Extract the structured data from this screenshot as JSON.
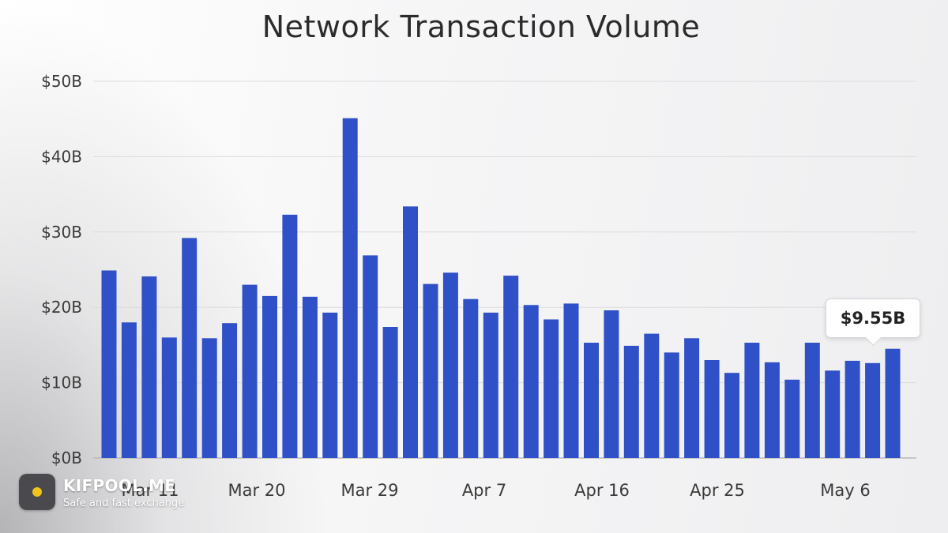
{
  "chart_data": {
    "type": "bar",
    "title": "Network Transaction Volume",
    "xlabel": "",
    "ylabel": "",
    "ylim": [
      0,
      50
    ],
    "y_unit": "$B",
    "y_ticks": [
      "$0B",
      "$10B",
      "$20B",
      "$30B",
      "$40B",
      "$50B"
    ],
    "x_tick_labels": [
      "Mar 11",
      "Mar 20",
      "Mar 29",
      "Apr 7",
      "Apr 16",
      "Apr 25",
      "May 6"
    ],
    "grid": true,
    "bar_color": "#3050c8",
    "values": [
      24.9,
      18.0,
      24.1,
      16.0,
      29.2,
      15.9,
      17.9,
      23.0,
      21.5,
      32.3,
      21.4,
      19.3,
      45.1,
      26.9,
      17.4,
      33.4,
      23.1,
      24.6,
      21.1,
      19.3,
      24.2,
      20.3,
      18.4,
      20.5,
      15.3,
      19.6,
      14.9,
      16.5,
      14.0,
      15.9,
      13.0,
      11.3,
      15.3,
      12.7,
      10.4,
      15.3,
      11.6,
      12.9,
      12.6,
      14.5
    ],
    "annotation": "$9.55B"
  },
  "watermark": {
    "name": "KIFPOOL.ME",
    "tagline": "Safe and fast exchange"
  }
}
